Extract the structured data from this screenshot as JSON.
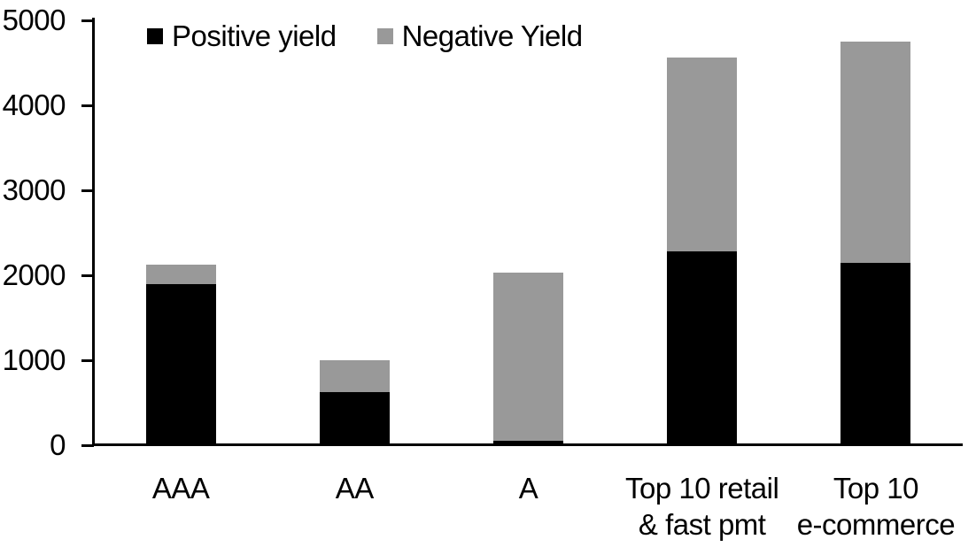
{
  "chart_data": {
    "type": "bar",
    "stacked": true,
    "title": "",
    "xlabel": "",
    "ylabel": "",
    "categories": [
      "AAA",
      "AA",
      "A",
      "Top 10 retail\n& fast pmt",
      "Top 10\ne-commerce"
    ],
    "series": [
      {
        "name": "Positive yield",
        "color": "#000000",
        "values": [
          1900,
          630,
          50,
          2280,
          2150
        ]
      },
      {
        "name": "Negative Yield",
        "color": "#999999",
        "values": [
          220,
          370,
          1980,
          2280,
          2600
        ]
      }
    ],
    "totals": [
      2120,
      1000,
      2030,
      4560,
      4750
    ],
    "ylim": [
      0,
      5000
    ],
    "yticks": [
      0,
      1000,
      2000,
      3000,
      4000,
      5000
    ],
    "grid": false,
    "legend_position": "top",
    "axis_color": "#000000",
    "background_color": "#ffffff"
  }
}
